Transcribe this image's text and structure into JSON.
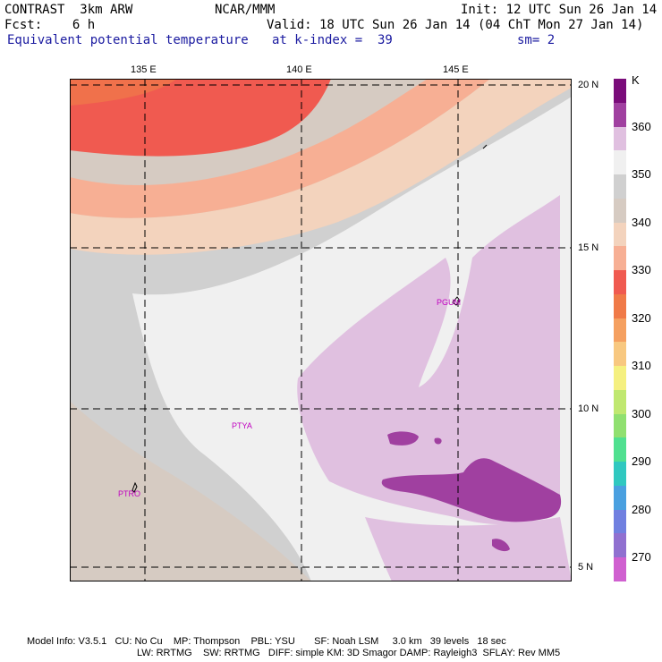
{
  "header": {
    "line1_left": "CONTRAST  3km ARW",
    "line1_center": "NCAR/MMM",
    "line1_right": "Init: 12 UTC Sun 26 Jan 14",
    "line2_left": "Fcst:    6 h",
    "line2_right": "Valid: 18 UTC Sun 26 Jan 14 (04 ChT Mon 27 Jan 14)",
    "line3_field": "Equivalent potential temperature",
    "line3_level": "at k-index =  39",
    "line3_smooth": "sm= 2"
  },
  "map": {
    "lon_labels": [
      "135 E",
      "140 E",
      "145 E"
    ],
    "lat_labels": [
      "20 N",
      "15 N",
      "10 N",
      "5 N"
    ],
    "stations": [
      "PGUM",
      "PTYA",
      "PTRO"
    ]
  },
  "colorbar": {
    "unit": "K",
    "labels": [
      "360",
      "350",
      "340",
      "330",
      "320",
      "310",
      "300",
      "290",
      "280",
      "270"
    ],
    "colors": [
      "#7a0c7a",
      "#a040a0",
      "#e0c0e0",
      "#f0f0f0",
      "#d0d0d0",
      "#d6cbc2",
      "#f3d3bd",
      "#f7af94",
      "#f05a50",
      "#f07a48",
      "#f5a060",
      "#f8c880",
      "#f5f080",
      "#c0e870",
      "#90e070",
      "#50e090",
      "#30c8c0",
      "#4aa0e0",
      "#7080e0",
      "#9070d0",
      "#d060d0"
    ]
  },
  "footer": {
    "line1": "Model Info: V3.5.1   CU: No Cu    MP: Thompson    PBL: YSU       SF: Noah LSM     3.0 km   39 levels   18 sec",
    "line2": "LW: RRTMG    SW: RRTMG   DIFF: simple KM: 3D Smagor DAMP: Rayleigh3  SFLAY: Rev MM5"
  }
}
